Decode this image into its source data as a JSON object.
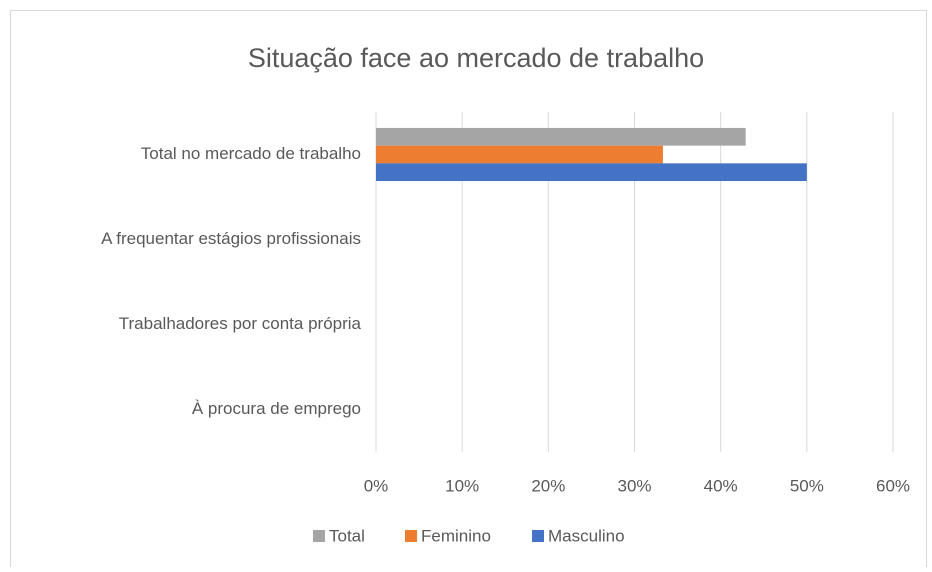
{
  "chart_data": {
    "type": "bar",
    "orientation": "horizontal",
    "title": "Situação face ao mercado de trabalho",
    "categories": [
      "Total no mercado de trabalho",
      "A frequentar estágios profissionais",
      "Trabalhadores por conta própria",
      "À procura de emprego"
    ],
    "series": [
      {
        "name": "Total",
        "color": "#a5a5a5",
        "values": [
          42.9,
          0,
          0,
          0
        ]
      },
      {
        "name": "Feminino",
        "color": "#ed7d31",
        "values": [
          33.3,
          0,
          0,
          0
        ]
      },
      {
        "name": "Masculino",
        "color": "#4472c4",
        "values": [
          50,
          0,
          0,
          0
        ]
      }
    ],
    "xlim": [
      0,
      60
    ],
    "xticks": [
      {
        "value": 0,
        "label": "0%"
      },
      {
        "value": 10,
        "label": "10%"
      },
      {
        "value": 20,
        "label": "20%"
      },
      {
        "value": 30,
        "label": "30%"
      },
      {
        "value": 40,
        "label": "40%"
      },
      {
        "value": 50,
        "label": "50%"
      },
      {
        "value": 60,
        "label": "60%"
      }
    ],
    "grid": true,
    "legend": "bottom"
  }
}
